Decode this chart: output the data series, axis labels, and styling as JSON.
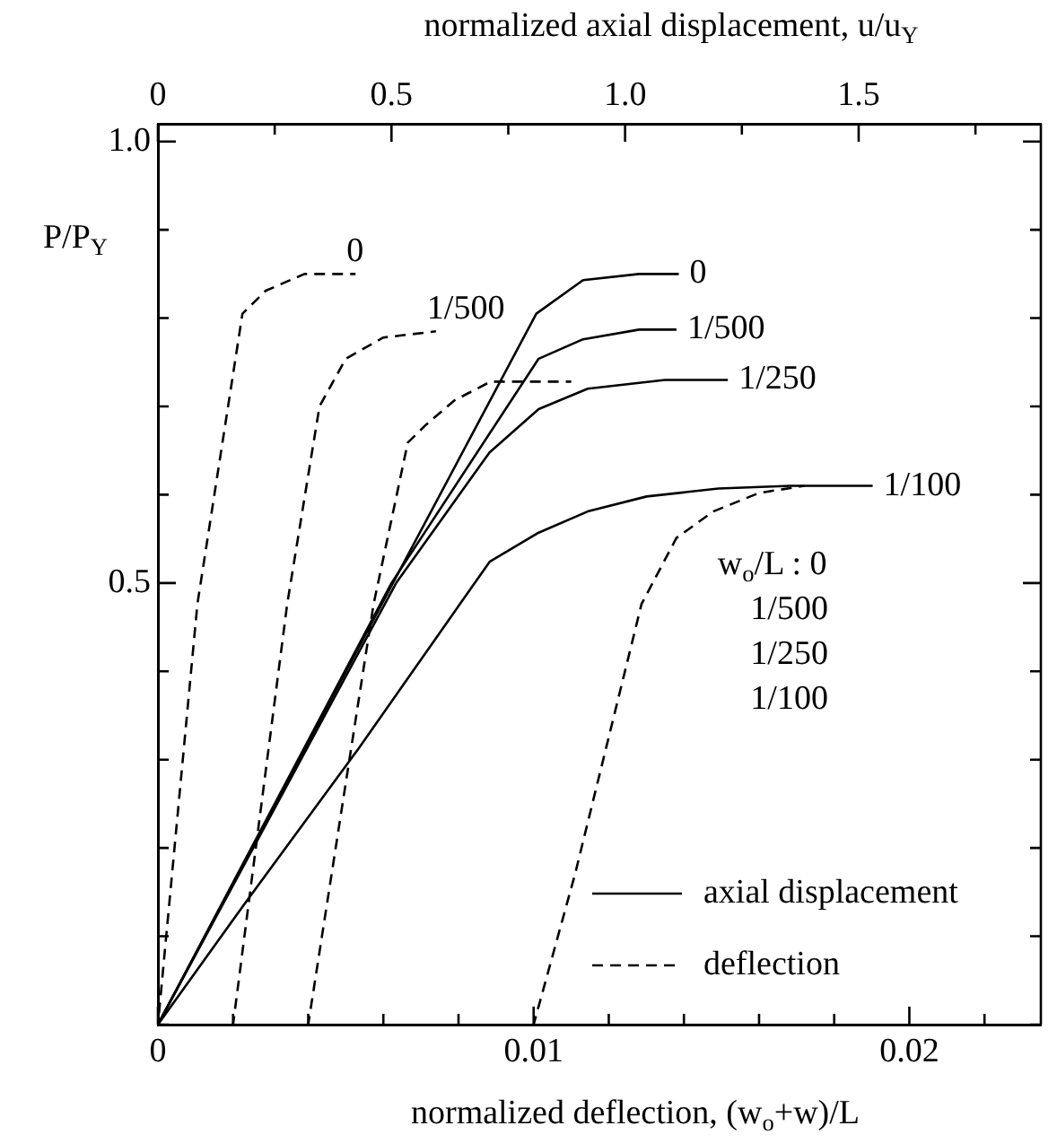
{
  "chart_data": {
    "type": "line",
    "xlabel": "normalized deflection, (w$_{o}$+w)/L",
    "x2label": "normalized axial displacement, u/u$_{Y}$",
    "ylabel": "P/P$_{Y}$",
    "xlim": [
      0,
      0.0235
    ],
    "xticks": [
      0,
      {
        "value": 0.002,
        "label": null
      },
      {
        "value": 0.004,
        "label": null
      },
      {
        "value": 0.006,
        "label": null
      },
      {
        "value": 0.008,
        "label": null
      },
      0.01,
      {
        "value": 0.012,
        "label": null
      },
      {
        "value": 0.014,
        "label": null
      },
      {
        "value": 0.016,
        "label": null
      },
      {
        "value": 0.018,
        "label": null
      },
      0.02,
      {
        "value": 0.022,
        "label": null
      }
    ],
    "x2lim": [
      0,
      1.89
    ],
    "x2ticks": [
      0,
      {
        "value": 0.25,
        "label": null
      },
      0.5,
      {
        "value": 0.75,
        "label": null
      },
      {
        "value": 1,
        "label": "1.0"
      },
      {
        "value": 1.25,
        "label": null
      },
      1.5,
      {
        "value": 1.75,
        "label": null
      }
    ],
    "ylim": [
      0,
      1.02
    ],
    "yticks": [
      {
        "value": 0,
        "label": null
      },
      {
        "value": 0.1,
        "label": null
      },
      {
        "value": 0.2,
        "label": null
      },
      {
        "value": 0.3,
        "label": null
      },
      {
        "value": 0.4,
        "label": null
      },
      0.5,
      {
        "value": 0.6,
        "label": null
      },
      {
        "value": 0.7,
        "label": null
      },
      {
        "value": 0.8,
        "label": null
      },
      {
        "value": 0.9,
        "label": null
      },
      {
        "value": 1,
        "label": "1.0"
      }
    ],
    "grid": false,
    "marker": "none",
    "series": [
      {
        "name": "0",
        "axis": "x2",
        "line_style": "solid",
        "color": "#000000",
        "x": [
          0,
          0.81,
          0.91,
          1.03,
          1.115
        ],
        "values": [
          0,
          0.805,
          0.843,
          0.85,
          0.85
        ]
      },
      {
        "name": "1/500",
        "axis": "x2",
        "line_style": "solid",
        "color": "#000000",
        "x": [
          0,
          0.5,
          0.815,
          0.91,
          1.03,
          1.11
        ],
        "values": [
          0,
          0.5,
          0.754,
          0.776,
          0.787,
          0.787
        ]
      },
      {
        "name": "1/250",
        "axis": "x2",
        "line_style": "solid",
        "color": "#000000",
        "x": [
          0,
          0.51,
          0.71,
          0.815,
          0.92,
          1.085,
          1.22
        ],
        "values": [
          0,
          0.5,
          0.648,
          0.697,
          0.72,
          0.73,
          0.73
        ]
      },
      {
        "name": "1/100",
        "axis": "x2",
        "line_style": "solid",
        "color": "#000000",
        "x": [
          0,
          0.19,
          0.43,
          0.71,
          0.815,
          0.92,
          1.046,
          1.2,
          1.354,
          1.53
        ],
        "values": [
          0,
          0.14,
          0.313,
          0.524,
          0.557,
          0.581,
          0.598,
          0.607,
          0.61,
          0.61
        ]
      },
      {
        "name": "0",
        "line_style": "dashed",
        "color": "#000000",
        "x": [
          0,
          0.00105,
          0.00225,
          0.00287,
          0.0039,
          0.00526
        ],
        "values": [
          0,
          0.476,
          0.805,
          0.831,
          0.85,
          0.85
        ]
      },
      {
        "name": "1/500",
        "line_style": "dashed",
        "color": "#000000",
        "x": [
          0.002,
          0.00344,
          0.0043,
          0.005,
          0.006,
          0.0074
        ],
        "values": [
          0,
          0.476,
          0.7,
          0.754,
          0.778,
          0.785
        ]
      },
      {
        "line_style": "dashed",
        "color": "#000000",
        "x": [
          0.004,
          0.00574,
          0.00665,
          0.00713,
          0.0079,
          0.00885,
          0.011
        ],
        "values": [
          0,
          0.476,
          0.659,
          0.679,
          0.707,
          0.728,
          0.728
        ]
      },
      {
        "line_style": "dashed",
        "color": "#000000",
        "x": [
          0.01,
          0.0111,
          0.01287,
          0.0138,
          0.01478,
          0.016,
          0.0172
        ],
        "values": [
          0,
          0.17,
          0.476,
          0.551,
          0.581,
          0.602,
          0.61
        ]
      }
    ],
    "annotations": [
      "axial displacement",
      "deflection",
      "w$_{o}$/L : 0",
      "1/500",
      "1/250",
      "1/100"
    ]
  }
}
